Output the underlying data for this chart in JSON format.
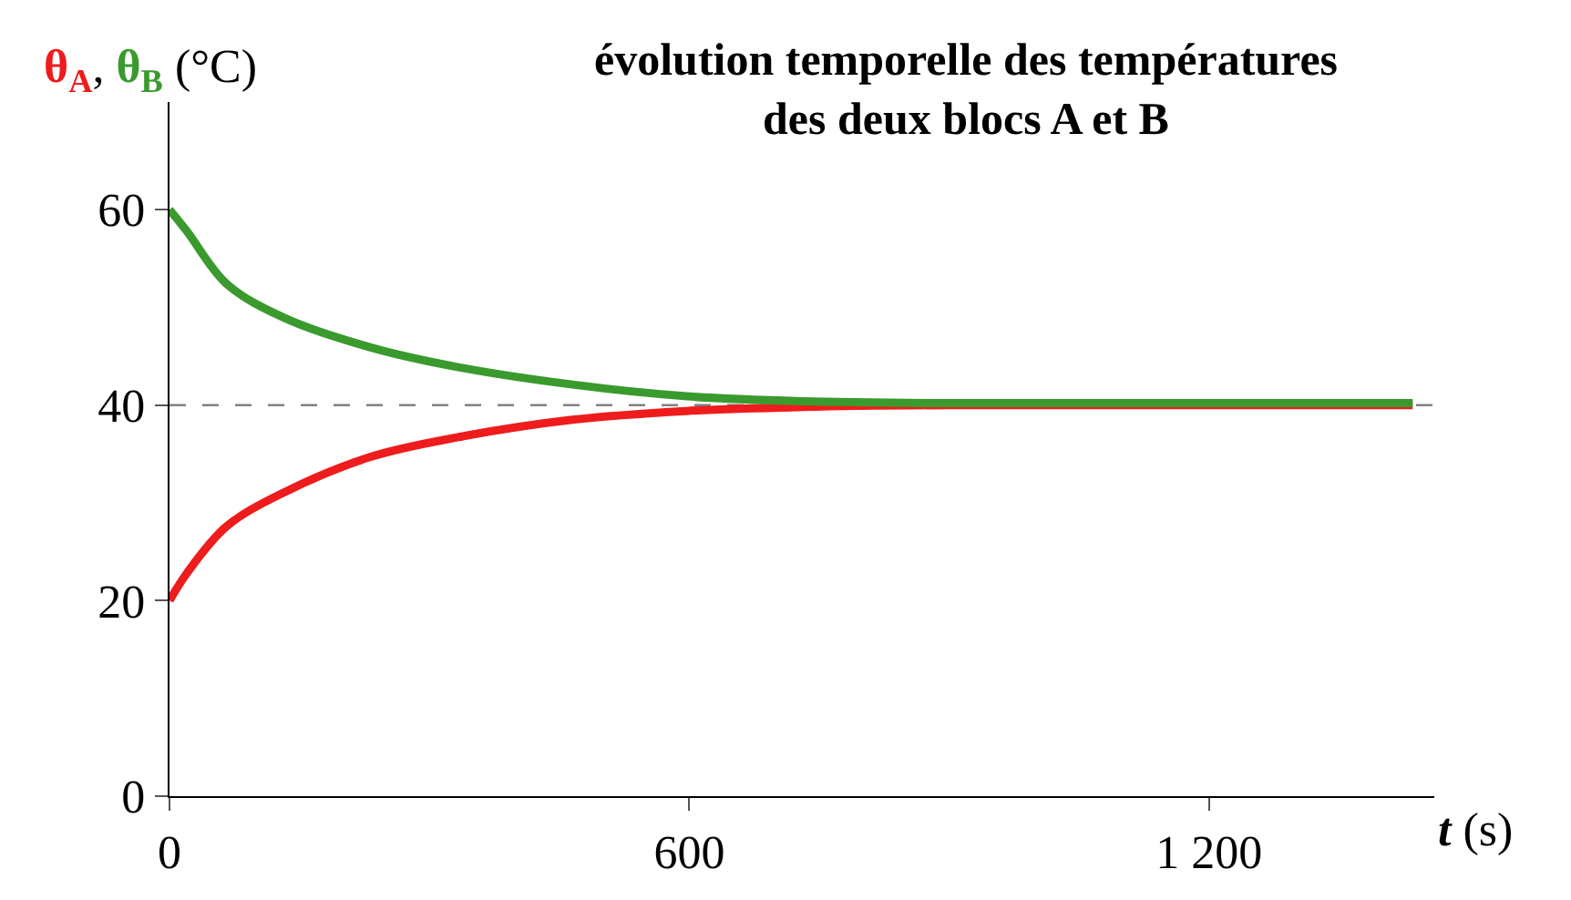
{
  "chart_data": {
    "type": "line",
    "title": "évolution temporelle des températures\ndes deux blocs A et B",
    "ylabel": "θ$_{A}$, θ$_{B}$ (°C)",
    "xlabel": "t (s)",
    "xlim": [
      0,
      1460
    ],
    "ylim": [
      0,
      71
    ],
    "xticks": [
      0,
      600,
      {
        "value": 1200,
        "label": "1 200"
      }
    ],
    "yticks": [
      0,
      20,
      40,
      60
    ],
    "grid": false,
    "legend": false,
    "marker": "none",
    "line_style": "solid",
    "ref_lines": [
      {
        "axis": "y",
        "value": 40,
        "color": "#808080",
        "line_style": "dashed"
      }
    ],
    "series": [
      {
        "color": "#ee1c1c",
        "x": [
          0,
          20,
          66,
          133,
          232,
          332,
          465,
          597,
          730,
          900,
          1435
        ],
        "values": [
          20,
          22.8,
          27.6,
          31.1,
          34.7,
          36.7,
          38.5,
          39.4,
          39.8,
          40,
          40
        ]
      },
      {
        "color": "#3a9a2e",
        "x": [
          0,
          20,
          66,
          133,
          232,
          332,
          465,
          597,
          730,
          900,
          1435
        ],
        "values": [
          60,
          57.8,
          52.4,
          48.9,
          45.9,
          43.9,
          42.1,
          40.9,
          40.4,
          40.2,
          40.2
        ]
      }
    ]
  }
}
